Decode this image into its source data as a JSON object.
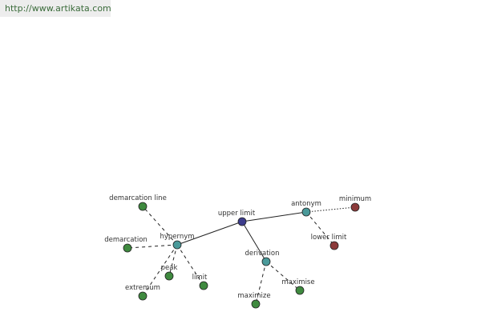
{
  "header": {
    "url": "http://www.artikata.com"
  },
  "nodes": [
    {
      "label": "upper limit"
    },
    {
      "label": "hypernym"
    },
    {
      "label": "antonym"
    },
    {
      "label": "derivation"
    },
    {
      "label": "minimum"
    },
    {
      "label": "lower limit"
    },
    {
      "label": "demarcation line"
    },
    {
      "label": "demarcation"
    },
    {
      "label": "peak"
    },
    {
      "label": "limit"
    },
    {
      "label": "extremum"
    },
    {
      "label": "maximize"
    },
    {
      "label": "maximise"
    }
  ]
}
